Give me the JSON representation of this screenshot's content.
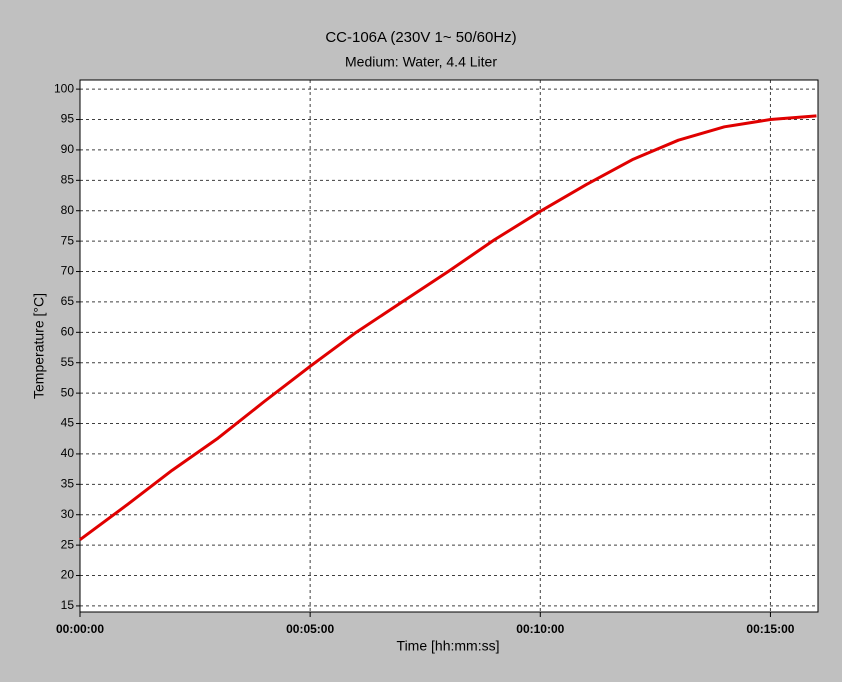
{
  "chart_data": {
    "type": "line",
    "title": "CC-106A (230V 1~ 50/60Hz)",
    "subtitle": "Medium: Water, 4.4 Liter",
    "x_label": "Time [hh:mm:ss]",
    "y_label": "Temperature [°C]",
    "x": [
      0,
      60,
      120,
      180,
      240,
      300,
      360,
      420,
      480,
      540,
      600,
      660,
      720,
      780,
      840,
      900,
      960
    ],
    "series": [
      {
        "name": "Temperature",
        "color": "#e00000",
        "values": [
          25.9,
          31.5,
          37.3,
          42.6,
          48.6,
          54.4,
          60.0,
          65.0,
          70.0,
          75.2,
          79.9,
          84.3,
          88.4,
          91.6,
          93.8,
          95.0,
          95.6
        ]
      }
    ],
    "xlim": [
      0,
      962
    ],
    "xticks": [
      {
        "value": 0,
        "label": "00:00:00"
      },
      {
        "value": 300,
        "label": "00:05:00"
      },
      {
        "value": 600,
        "label": "00:10:00"
      },
      {
        "value": 900,
        "label": "00:15:00"
      }
    ],
    "ylim": [
      14,
      101.5
    ],
    "yticks": [
      15,
      20,
      25,
      30,
      35,
      40,
      45,
      50,
      55,
      60,
      65,
      70,
      75,
      80,
      85,
      90,
      95,
      100
    ],
    "grid": true
  }
}
